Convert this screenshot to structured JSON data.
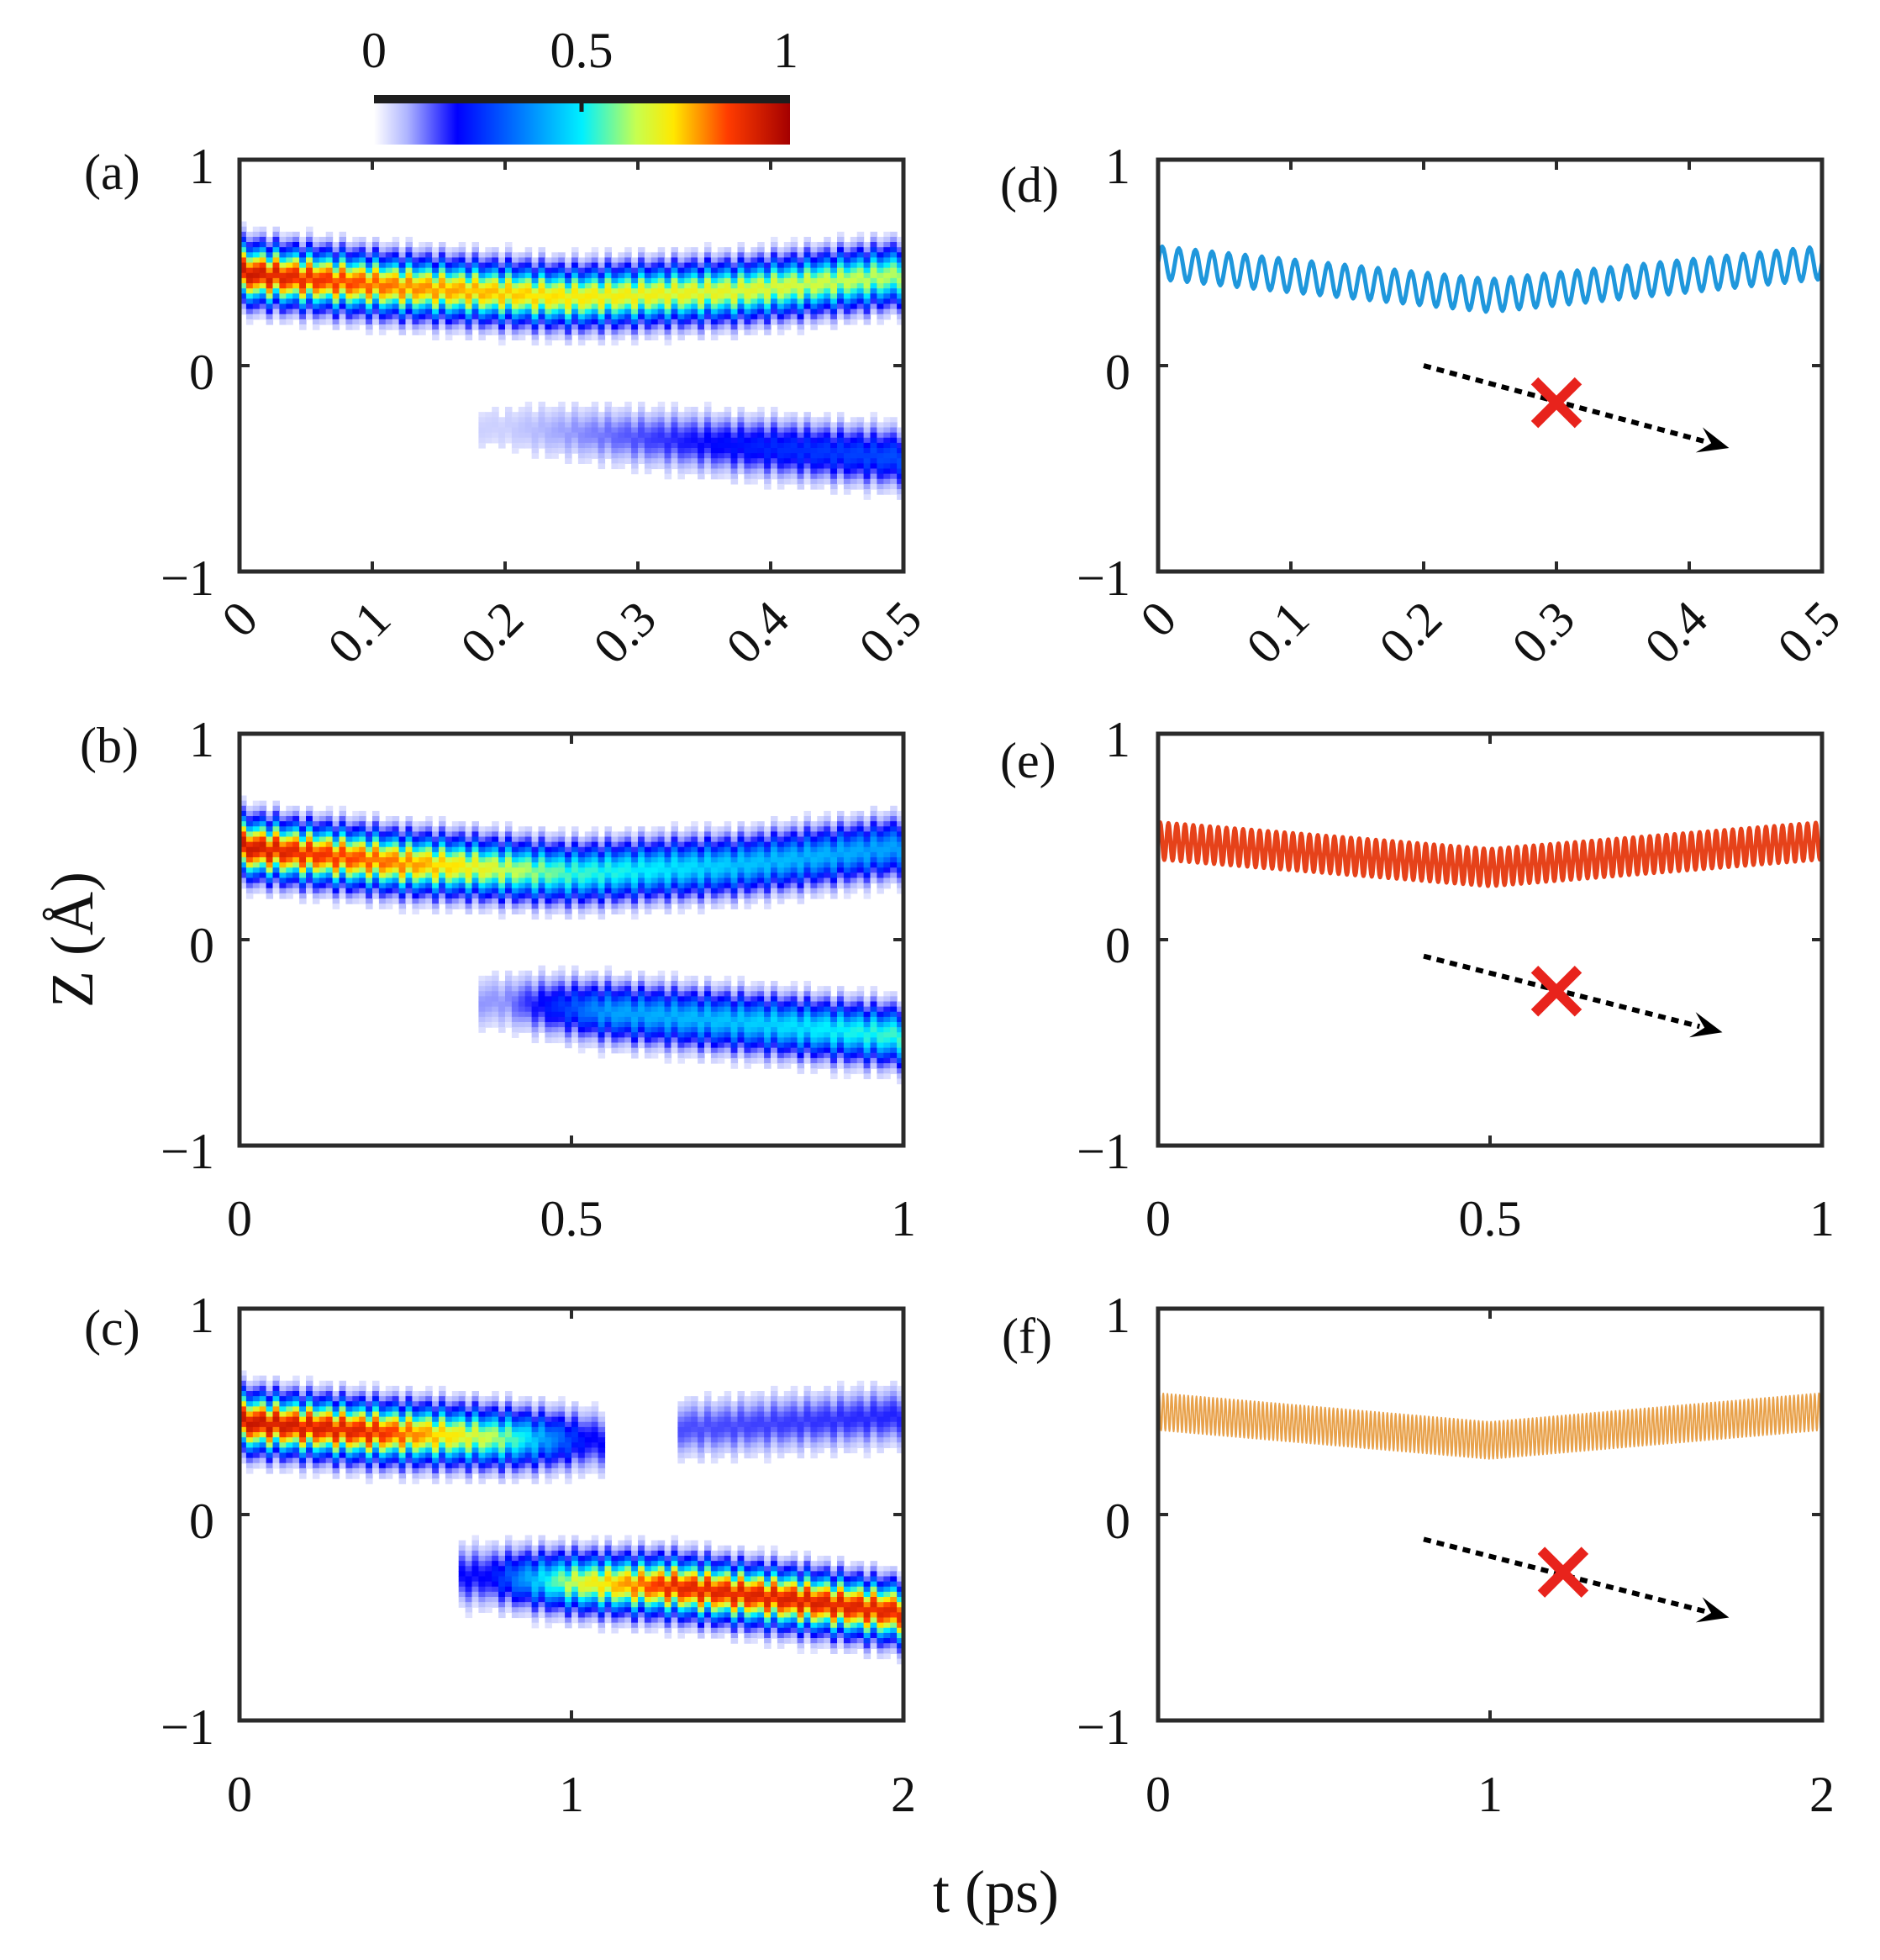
{
  "figure": {
    "x_axis_label": "t (ps)",
    "y_axis_label": "Z (Å)",
    "colorbar": {
      "ticks": [
        "0",
        "0.5",
        "1"
      ],
      "range": [
        0,
        1
      ],
      "colormap": "jet-with-white-low"
    }
  },
  "colors": {
    "axis": "#2b2b2b",
    "blue_line": "#1f97dc",
    "red_line": "#e6421a",
    "orange_line": "#e8a14a",
    "cross": "#e8231c",
    "arrow": "#000000"
  },
  "chart_data": [
    {
      "id": "a",
      "panel_label": "(a)",
      "type": "heatmap",
      "xlim": [
        0,
        0.5
      ],
      "ylim": [
        -1,
        1
      ],
      "xticks": [
        "0",
        "0.1",
        "0.2",
        "0.3",
        "0.4",
        "0.5"
      ],
      "yticks": [
        "1",
        "0",
        "−1"
      ],
      "xtick_rotation": -45,
      "description_series": [
        {
          "name": "upper band",
          "t": [
            0,
            0.125,
            0.25,
            0.375,
            0.5
          ],
          "center_z": [
            0.45,
            0.38,
            0.33,
            0.36,
            0.44
          ],
          "peak": [
            0.95,
            0.8,
            0.72,
            0.68,
            0.62
          ]
        },
        {
          "name": "lower band",
          "t": [
            0.2,
            0.3,
            0.4,
            0.5
          ],
          "center_z": [
            -0.3,
            -0.35,
            -0.4,
            -0.45
          ],
          "peak": [
            0.05,
            0.15,
            0.25,
            0.3
          ]
        }
      ]
    },
    {
      "id": "b",
      "panel_label": "(b)",
      "type": "heatmap",
      "xlim": [
        0,
        1
      ],
      "ylim": [
        -1,
        1
      ],
      "xticks": [
        "0",
        "0.5",
        "1"
      ],
      "yticks": [
        "1",
        "0",
        "−1"
      ],
      "description_series": [
        {
          "name": "upper band",
          "t": [
            0,
            0.25,
            0.5,
            0.75,
            1
          ],
          "center_z": [
            0.45,
            0.37,
            0.32,
            0.36,
            0.45
          ],
          "peak": [
            0.95,
            0.8,
            0.55,
            0.45,
            0.4
          ]
        },
        {
          "name": "lower band",
          "t": [
            0.4,
            0.55,
            0.75,
            1
          ],
          "center_z": [
            -0.3,
            -0.35,
            -0.4,
            -0.47
          ],
          "peak": [
            0.1,
            0.4,
            0.45,
            0.55
          ]
        }
      ]
    },
    {
      "id": "c",
      "panel_label": "(c)",
      "type": "heatmap",
      "xlim": [
        0,
        2
      ],
      "ylim": [
        -1,
        1
      ],
      "xticks": [
        "0",
        "1",
        "2"
      ],
      "yticks": [
        "1",
        "0",
        "−1"
      ],
      "description_series": [
        {
          "name": "upper band",
          "t": [
            0,
            0.4,
            0.8,
            1.05
          ],
          "center_z": [
            0.45,
            0.4,
            0.37,
            0.36
          ],
          "peak": [
            0.95,
            0.9,
            0.6,
            0.2
          ]
        },
        {
          "name": "upper revival",
          "t": [
            1.4,
            2.0
          ],
          "center_z": [
            0.42,
            0.48
          ],
          "peak": [
            0.15,
            0.18
          ]
        },
        {
          "name": "lower band",
          "t": [
            0.75,
            1.0,
            1.3,
            1.7,
            2.0
          ],
          "center_z": [
            -0.3,
            -0.33,
            -0.35,
            -0.42,
            -0.48
          ],
          "peak": [
            0.2,
            0.65,
            0.9,
            0.92,
            0.9
          ]
        }
      ]
    },
    {
      "id": "d",
      "panel_label": "(d)",
      "type": "line",
      "xlim": [
        0,
        0.5
      ],
      "ylim": [
        -1,
        1
      ],
      "xticks": [
        "0",
        "0.1",
        "0.2",
        "0.3",
        "0.4",
        "0.5"
      ],
      "yticks": [
        "1",
        "0",
        "−1"
      ],
      "xtick_rotation": -45,
      "series": [
        {
          "name": "Z(t)",
          "color": "blue_line",
          "mean_curve": {
            "t": [
              0,
              0.25,
              0.5
            ],
            "z": [
              0.5,
              0.34,
              0.5
            ]
          },
          "oscillation_amplitude": 0.08,
          "oscillation_cycles": 40
        }
      ],
      "annotation": {
        "arrow_from": [
          0.2,
          0.0
        ],
        "arrow_to": [
          0.43,
          -0.4
        ],
        "cross_at": [
          0.3,
          -0.18
        ]
      }
    },
    {
      "id": "e",
      "panel_label": "(e)",
      "type": "line",
      "xlim": [
        0,
        1
      ],
      "ylim": [
        -1,
        1
      ],
      "xticks": [
        "0",
        "0.5",
        "1"
      ],
      "yticks": [
        "1",
        "0",
        "−1"
      ],
      "series": [
        {
          "name": "Z(t)",
          "color": "red_line",
          "mean_curve": {
            "t": [
              0,
              0.5,
              1
            ],
            "z": [
              0.48,
              0.35,
              0.48
            ]
          },
          "oscillation_amplitude": 0.09,
          "oscillation_cycles": 80
        }
      ],
      "annotation": {
        "arrow_from": [
          0.4,
          -0.08
        ],
        "arrow_to": [
          0.85,
          -0.45
        ],
        "cross_at": [
          0.6,
          -0.25
        ]
      }
    },
    {
      "id": "f",
      "panel_label": "(f)",
      "type": "line",
      "xlim": [
        0,
        2
      ],
      "ylim": [
        -1,
        1
      ],
      "xticks": [
        "0",
        "1",
        "2"
      ],
      "yticks": [
        "1",
        "0",
        "−1"
      ],
      "series": [
        {
          "name": "Z(t)",
          "color": "orange_line",
          "mean_curve": {
            "t": [
              0,
              1,
              2
            ],
            "z": [
              0.5,
              0.36,
              0.5
            ]
          },
          "oscillation_amplitude": 0.09,
          "oscillation_cycles": 160
        }
      ],
      "annotation": {
        "arrow_from": [
          0.8,
          -0.12
        ],
        "arrow_to": [
          1.72,
          -0.5
        ],
        "cross_at": [
          1.22,
          -0.28
        ]
      }
    }
  ]
}
